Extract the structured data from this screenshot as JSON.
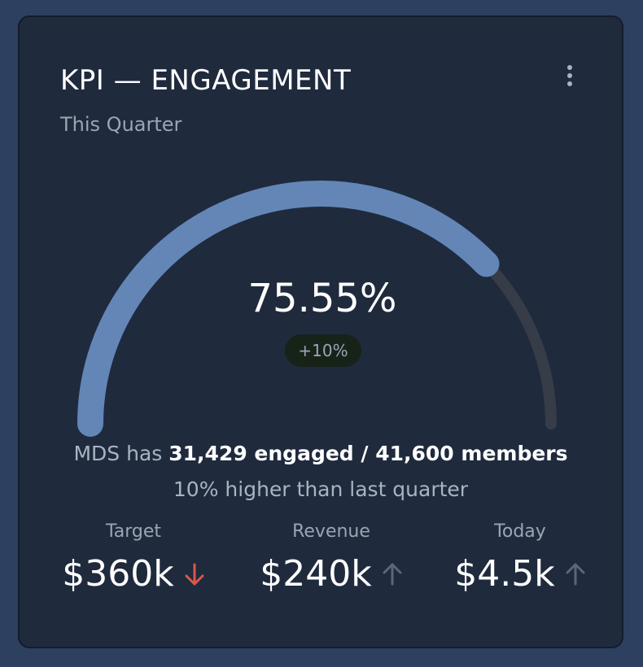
{
  "card": {
    "title": "KPI — ENGAGEMENT",
    "subtitle": "This Quarter"
  },
  "gauge": {
    "value_text": "75.55%",
    "fraction": 0.7555,
    "delta_text": "+10%",
    "fill_color": "#6386b7",
    "track_color": "#363d48"
  },
  "summary": {
    "prefix": "MDS has",
    "highlight": "31,429 engaged / 41,600 members",
    "line2": "10% higher than last quarter"
  },
  "stats": [
    {
      "label": "Target",
      "value": "$360k",
      "trend": "down",
      "trend_color": "#d9584a"
    },
    {
      "label": "Revenue",
      "value": "$240k",
      "trend": "up",
      "trend_color": "#5b6778"
    },
    {
      "label": "Today",
      "value": "$4.5k",
      "trend": "up",
      "trend_color": "#5b6778"
    }
  ],
  "icons": {
    "menu": "more-vertical-icon",
    "trend_down": "arrow-down-icon",
    "trend_up": "arrow-up-icon"
  }
}
